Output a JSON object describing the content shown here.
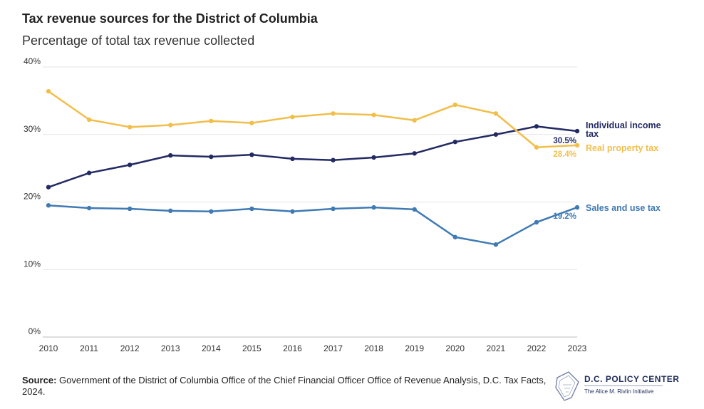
{
  "title": "Tax revenue sources for the District of Columbia",
  "subtitle": "Percentage of total tax revenue collected",
  "source_label": "Source:",
  "source_text": "Government of the District of Columbia Office of the Chief Financial Officer Office of Revenue Analysis, D.C. Tax Facts, 2024.",
  "logo": {
    "name": "D.C. POLICY CENTER",
    "tagline": "The Alice M. Rivlin Initiative"
  },
  "colors": {
    "income": "#232a63",
    "property": "#f2be4a",
    "sales": "#3f7ab3",
    "grid": "#e6e6e6",
    "axis_text": "#333333"
  },
  "chart_data": {
    "type": "line",
    "title": "Tax revenue sources for the District of Columbia",
    "subtitle": "Percentage of total tax revenue collected",
    "xlabel": "",
    "ylabel": "",
    "ylim": [
      0,
      40
    ],
    "yticks": [
      0,
      10,
      20,
      30,
      40
    ],
    "ytick_labels": [
      "0%",
      "10%",
      "20%",
      "30%",
      "40%"
    ],
    "grid": true,
    "legend": "direct labels at line ends (right)",
    "x": [
      "2010",
      "2011",
      "2012",
      "2013",
      "2014",
      "2015",
      "2016",
      "2017",
      "2018",
      "2019",
      "2020",
      "2021",
      "2022",
      "2023"
    ],
    "series": [
      {
        "key": "income",
        "name_lines": [
          "Individual income",
          "tax"
        ],
        "end_label": "30.5%",
        "values": [
          22.2,
          24.3,
          25.5,
          26.9,
          26.7,
          27.0,
          26.4,
          26.2,
          26.6,
          27.2,
          28.9,
          30.0,
          31.2,
          30.5
        ]
      },
      {
        "key": "property",
        "name_lines": [
          "Real property tax"
        ],
        "end_label": "28.4%",
        "values": [
          36.4,
          32.2,
          31.1,
          31.4,
          32.0,
          31.7,
          32.6,
          33.1,
          32.9,
          32.1,
          34.4,
          33.1,
          28.1,
          28.4
        ]
      },
      {
        "key": "sales",
        "name_lines": [
          "Sales and use tax"
        ],
        "end_label": "19.2%",
        "values": [
          19.5,
          19.1,
          19.0,
          18.7,
          18.6,
          19.0,
          18.6,
          19.0,
          19.2,
          18.9,
          14.8,
          13.7,
          17.0,
          19.2
        ]
      }
    ]
  }
}
